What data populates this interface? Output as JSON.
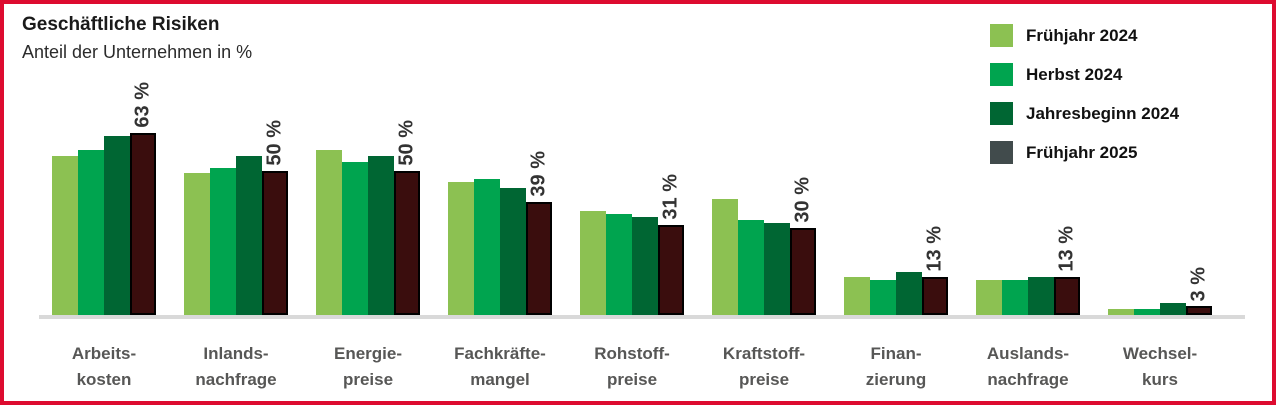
{
  "frame": {
    "border_color": "#dd0b2f",
    "background": "#ffffff"
  },
  "header": {
    "title": "Geschäftliche Risiken",
    "subtitle": "Anteil der Unternehmen in %"
  },
  "legend": {
    "position": "top-right",
    "items": [
      {
        "label": "Frühjahr 2024",
        "swatch_color": "#8cc152"
      },
      {
        "label": "Herbst 2024",
        "swatch_color": "#00a44f"
      },
      {
        "label": "Jahresbeginn 2024",
        "swatch_color": "#006633"
      },
      {
        "label": "Frühjahr 2025",
        "swatch_color": "#414b4c"
      }
    ]
  },
  "chart_data": {
    "type": "bar",
    "title": "Geschäftliche Risiken",
    "subtitle": "Anteil der Unternehmen in %",
    "unit": "%",
    "categories": [
      "Arbeitskosten",
      "Inlandsnachfrage",
      "Energiepreise",
      "Fachkräftemangel",
      "Rohstoffpreise",
      "Kraftstoffpreise",
      "Finanzierung",
      "Auslandsnachfrage",
      "Wechselkurs"
    ],
    "category_labels": [
      [
        "Arbeits-",
        "kosten"
      ],
      [
        "Inlands-",
        "nachfrage"
      ],
      [
        "Energie-",
        "preise"
      ],
      [
        "Fachkräfte-",
        "mangel"
      ],
      [
        "Rohstoff-",
        "preise"
      ],
      [
        "Kraftstoff-",
        "preise"
      ],
      [
        "Finan-",
        "zierung"
      ],
      [
        "Auslands-",
        "nachfrage"
      ],
      [
        "Wechsel-",
        "kurs"
      ]
    ],
    "series": [
      {
        "name": "Frühjahr 2024",
        "color": "#8cc152",
        "values": [
          55,
          49,
          57,
          46,
          36,
          40,
          13,
          12,
          2
        ]
      },
      {
        "name": "Herbst 2024",
        "color": "#00a44f",
        "values": [
          57,
          51,
          53,
          47,
          35,
          33,
          12,
          12,
          2
        ]
      },
      {
        "name": "Jahresbeginn 2024",
        "color": "#006633",
        "values": [
          62,
          55,
          55,
          44,
          34,
          32,
          15,
          13,
          4
        ]
      },
      {
        "name": "Frühjahr 2025",
        "color": "#3a0d0d",
        "border_color": "#000000",
        "values": [
          63,
          50,
          50,
          39,
          31,
          30,
          13,
          13,
          3
        ],
        "value_labels": [
          "63 %",
          "50 %",
          "50 %",
          "39 %",
          "31 %",
          "30 %",
          "13 %",
          "13 %",
          "3 %"
        ]
      }
    ],
    "value_label_style": "rotated 90° bottom-to-top, shown only for series 'Frühjahr 2025'",
    "ylim": [
      0,
      70
    ],
    "grid": false,
    "legend_position": "top-right",
    "axis_line_color": "#d9d9d9",
    "category_label_color": "#575756"
  }
}
